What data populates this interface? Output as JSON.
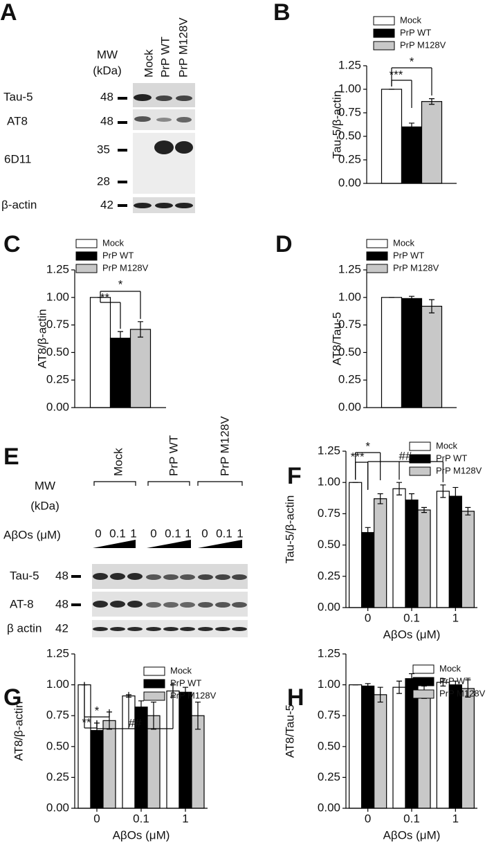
{
  "blots": [
    {
      "panel": "A",
      "mw_title": "MW",
      "mw_unit": "(kDa)",
      "lanes": [
        "Mock",
        "PrP WT",
        "PrP M128V"
      ],
      "rows": [
        {
          "label": "Tau-5",
          "mw": 48
        },
        {
          "label": "AT8",
          "mw": 48
        },
        {
          "label": "6D11",
          "mw": 35
        },
        {
          "mw": 28
        },
        {
          "label": "β-actin",
          "mw": 42
        }
      ]
    },
    {
      "panel": "E",
      "mw_title": "MW",
      "mw_unit": "(kDa)",
      "groups": [
        "Mock",
        "PrP WT",
        "PrP M128V"
      ],
      "treatment": "AβOs (μM)",
      "doses": [
        "0",
        "0.1",
        "1"
      ],
      "rows": [
        {
          "label": "Tau-5",
          "mw": 48
        },
        {
          "label": "AT-8",
          "mw": 48
        },
        {
          "label": "β actin",
          "mw": 42
        }
      ]
    }
  ],
  "chart_data": [
    {
      "type": "bar",
      "panel": "B",
      "ylabel": "Tau-5/β-actin",
      "ylim": [
        0,
        1.25
      ],
      "yticks": [
        {
          "value": 0,
          "label": "0.00"
        },
        {
          "value": 0.25,
          "label": "0.25"
        },
        {
          "value": 0.5,
          "label": "0.50"
        },
        {
          "value": 0.75,
          "label": "0.75"
        },
        {
          "value": 1,
          "label": "1.00"
        },
        {
          "value": 1.25,
          "label": "1.25"
        }
      ],
      "series": [
        {
          "name": "Mock",
          "color": "#ffffff",
          "values": [
            1.0
          ],
          "errors": [
            0
          ]
        },
        {
          "name": "PrP WT",
          "color": "#000000",
          "values": [
            0.6
          ],
          "errors": [
            0.04
          ]
        },
        {
          "name": "PrP M128V",
          "color": "#c8c8c8",
          "values": [
            0.87
          ],
          "errors": [
            0.03
          ]
        }
      ],
      "annotations": [
        "***",
        "*"
      ]
    },
    {
      "type": "bar",
      "panel": "C",
      "ylabel": "AT8/β-actin",
      "ylim": [
        0,
        1.25
      ],
      "yticks": [
        {
          "value": 0,
          "label": "0.00"
        },
        {
          "value": 0.25,
          "label": "0.25"
        },
        {
          "value": 0.5,
          "label": "0.50"
        },
        {
          "value": 0.75,
          "label": "0.75"
        },
        {
          "value": 1,
          "label": "1.00"
        },
        {
          "value": 1.25,
          "label": "1.25"
        }
      ],
      "series": [
        {
          "name": "Mock",
          "color": "#ffffff",
          "values": [
            1.0
          ],
          "errors": [
            0
          ]
        },
        {
          "name": "PrP WT",
          "color": "#000000",
          "values": [
            0.63
          ],
          "errors": [
            0.06
          ]
        },
        {
          "name": "PrP M128V",
          "color": "#c8c8c8",
          "values": [
            0.71
          ],
          "errors": [
            0.07
          ]
        }
      ],
      "annotations": [
        "**",
        "*"
      ]
    },
    {
      "type": "bar",
      "panel": "D",
      "ylabel": "AT8/Tau-5",
      "ylim": [
        0,
        1.25
      ],
      "yticks": [
        {
          "value": 0,
          "label": "0.00"
        },
        {
          "value": 0.25,
          "label": "0.25"
        },
        {
          "value": 0.5,
          "label": "0.50"
        },
        {
          "value": 0.75,
          "label": "0.75"
        },
        {
          "value": 1,
          "label": "1.00"
        },
        {
          "value": 1.25,
          "label": "1.25"
        }
      ],
      "series": [
        {
          "name": "Mock",
          "color": "#ffffff",
          "values": [
            1.0
          ],
          "errors": [
            0
          ]
        },
        {
          "name": "PrP WT",
          "color": "#000000",
          "values": [
            0.99
          ],
          "errors": [
            0.02
          ]
        },
        {
          "name": "PrP M128V",
          "color": "#c8c8c8",
          "values": [
            0.92
          ],
          "errors": [
            0.06
          ]
        }
      ]
    },
    {
      "type": "bar",
      "panel": "F",
      "ylabel": "Tau-5/β-actin",
      "xlabel": "AβOs (μM)",
      "categories": [
        "0",
        "0.1",
        "1"
      ],
      "ylim": [
        0,
        1.25
      ],
      "yticks": [
        {
          "value": 0,
          "label": "0.00"
        },
        {
          "value": 0.25,
          "label": "0.25"
        },
        {
          "value": 0.5,
          "label": "0.50"
        },
        {
          "value": 0.75,
          "label": "0.75"
        },
        {
          "value": 1,
          "label": "1.00"
        },
        {
          "value": 1.25,
          "label": "1.25"
        }
      ],
      "series": [
        {
          "name": "Mock",
          "color": "#ffffff",
          "values": [
            1.0,
            0.95,
            0.93
          ],
          "errors": [
            0,
            0.05,
            0.05
          ]
        },
        {
          "name": "PrP WT",
          "color": "#000000",
          "values": [
            0.6,
            0.86,
            0.89
          ],
          "errors": [
            0.04,
            0.05,
            0.07
          ]
        },
        {
          "name": "PrP M128V",
          "color": "#c8c8c8",
          "values": [
            0.87,
            0.78,
            0.77
          ],
          "errors": [
            0.04,
            0.02,
            0.03
          ]
        }
      ],
      "annotations": [
        "***",
        "*",
        "##"
      ]
    },
    {
      "type": "bar",
      "panel": "G",
      "ylabel": "AT8/β-actin",
      "xlabel": "AβOs (μM)",
      "categories": [
        "0",
        "0.1",
        "1"
      ],
      "ylim": [
        0,
        1.25
      ],
      "yticks": [
        {
          "value": 0,
          "label": "0.00"
        },
        {
          "value": 0.25,
          "label": "0.25"
        },
        {
          "value": 0.5,
          "label": "0.50"
        },
        {
          "value": 0.75,
          "label": "0.75"
        },
        {
          "value": 1,
          "label": "1.00"
        },
        {
          "value": 1.25,
          "label": "1.25"
        }
      ],
      "series": [
        {
          "name": "Mock",
          "color": "#ffffff",
          "values": [
            1.0,
            0.91,
            0.95
          ],
          "errors": [
            0,
            0.01,
            0.05
          ]
        },
        {
          "name": "PrP WT",
          "color": "#000000",
          "values": [
            0.63,
            0.82,
            0.94
          ],
          "errors": [
            0.06,
            0.05,
            0.04
          ]
        },
        {
          "name": "PrP M128V",
          "color": "#c8c8c8",
          "values": [
            0.71,
            0.75,
            0.75
          ],
          "errors": [
            0.07,
            0.11,
            0.11
          ]
        }
      ],
      "annotations": [
        "**",
        "*",
        "##"
      ]
    },
    {
      "type": "bar",
      "panel": "H",
      "ylabel": "AT8/Tau-5",
      "xlabel": "AβOs (μM)",
      "categories": [
        "0",
        "0.1",
        "1"
      ],
      "ylim": [
        0,
        1.25
      ],
      "yticks": [
        {
          "value": 0,
          "label": "0.00"
        },
        {
          "value": 0.25,
          "label": "0.25"
        },
        {
          "value": 0.5,
          "label": "0.50"
        },
        {
          "value": 0.75,
          "label": "0.75"
        },
        {
          "value": 1,
          "label": "1.00"
        },
        {
          "value": 1.25,
          "label": "1.25"
        }
      ],
      "series": [
        {
          "name": "Mock",
          "color": "#ffffff",
          "values": [
            1.0,
            0.98,
            1.02
          ],
          "errors": [
            0,
            0.05,
            0.03
          ]
        },
        {
          "name": "PrP WT",
          "color": "#000000",
          "values": [
            0.99,
            1.05,
            1.0
          ],
          "errors": [
            0.02,
            0.04,
            0.03
          ]
        },
        {
          "name": "PrP M128V",
          "color": "#c8c8c8",
          "values": [
            0.92,
            0.94,
            0.97
          ],
          "errors": [
            0.06,
            0.05,
            0.07
          ]
        }
      ]
    }
  ]
}
